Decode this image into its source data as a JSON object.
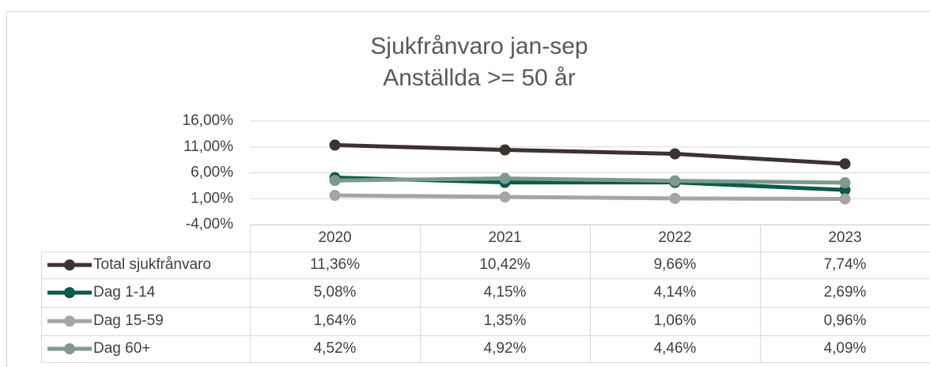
{
  "chart_data": {
    "type": "line",
    "title": "Sjukfrånvaro jan-sep",
    "subtitle": "Anställda >= 50 år",
    "categories": [
      "2020",
      "2021",
      "2022",
      "2023"
    ],
    "ylim": [
      -4,
      16
    ],
    "yticks": [
      {
        "value": -4,
        "label": "-4,00%"
      },
      {
        "value": 1,
        "label": "1,00%"
      },
      {
        "value": 6,
        "label": "6,00%"
      },
      {
        "value": 11,
        "label": "11,00%"
      },
      {
        "value": 16,
        "label": "16,00%"
      }
    ],
    "grid": true,
    "series": [
      {
        "name": "Total sjukfrånvaro",
        "color": "#3b3231",
        "values": [
          11.36,
          10.42,
          9.66,
          7.74
        ],
        "value_labels": [
          "11,36%",
          "10,42%",
          "9,66%",
          "7,74%"
        ]
      },
      {
        "name": "Dag 1-14",
        "color": "#0b5b4c",
        "values": [
          5.08,
          4.15,
          4.14,
          2.69
        ],
        "value_labels": [
          "5,08%",
          "4,15%",
          "4,14%",
          "2,69%"
        ]
      },
      {
        "name": "Dag 15-59",
        "color": "#a5a5a5",
        "values": [
          1.64,
          1.35,
          1.06,
          0.96
        ],
        "value_labels": [
          "1,64%",
          "1,35%",
          "1,06%",
          "0,96%"
        ]
      },
      {
        "name": "Dag 60+",
        "color": "#7e9a8e",
        "values": [
          4.52,
          4.92,
          4.46,
          4.09
        ],
        "value_labels": [
          "4,52%",
          "4,92%",
          "4,46%",
          "4,09%"
        ]
      }
    ]
  }
}
